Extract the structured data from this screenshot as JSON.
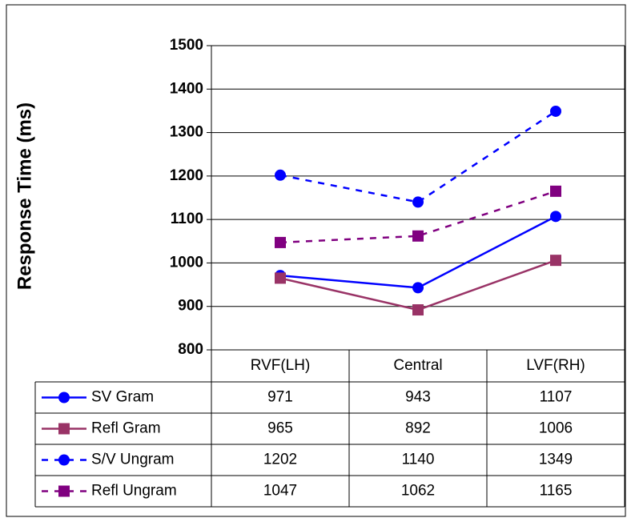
{
  "chart_data": {
    "type": "line",
    "y_label": "Response Time (ms)",
    "categories": [
      "RVF(LH)",
      "Central",
      "LVF(RH)"
    ],
    "series": [
      {
        "name": "SV Gram",
        "color": "#0000ff",
        "marker": "circle",
        "dashed": false,
        "values": [
          971,
          943,
          1107
        ]
      },
      {
        "name": "Refl Gram",
        "color": "#993366",
        "marker": "square",
        "dashed": false,
        "values": [
          965,
          892,
          1006
        ]
      },
      {
        "name": "S/V Ungram",
        "color": "#0000ff",
        "marker": "circle",
        "dashed": true,
        "values": [
          1202,
          1140,
          1349
        ]
      },
      {
        "name": "Refl Ungram",
        "color": "#800080",
        "marker": "square",
        "dashed": true,
        "values": [
          1047,
          1062,
          1165
        ]
      }
    ],
    "ylim": [
      800,
      1500
    ],
    "yticks": [
      800,
      900,
      1000,
      1100,
      1200,
      1300,
      1400,
      1500
    ],
    "grid": true,
    "data_table": true
  }
}
